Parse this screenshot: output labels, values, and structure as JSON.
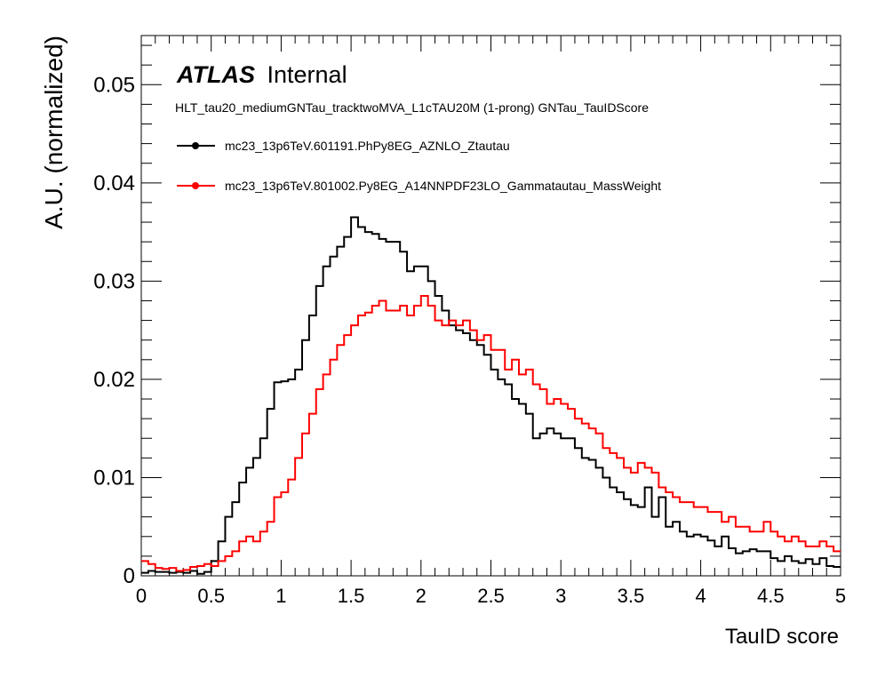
{
  "chart_data": {
    "type": "line",
    "style": "step-histogram",
    "ylabel": "A.U. (normalized)",
    "xlabel": "TauID score",
    "xlim": [
      0,
      5
    ],
    "ylim": [
      0,
      0.055
    ],
    "bin_width": 0.05,
    "x_ticks": [
      "0",
      "0.5",
      "1",
      "1.5",
      "2",
      "2.5",
      "3",
      "3.5",
      "4",
      "4.5",
      "5"
    ],
    "y_ticks": [
      "0",
      "0.01",
      "0.02",
      "0.03",
      "0.04",
      "0.05"
    ],
    "x_tick_values": [
      0,
      0.5,
      1,
      1.5,
      2,
      2.5,
      3,
      3.5,
      4,
      4.5,
      5
    ],
    "y_tick_values": [
      0,
      0.01,
      0.02,
      0.03,
      0.04,
      0.05
    ],
    "grid": false,
    "legend_position": "top-left",
    "atlas_label": "ATLAS",
    "atlas_status": "Internal",
    "subtitle": "HLT_tau20_mediumGNTau_tracktwoMVA_L1cTAU20M (1-prong) GNTau_TauIDScore",
    "series": [
      {
        "name": "mc23_13p6TeV.601191.PhPy8EG_AZNLO_Ztautau",
        "color": "#000000",
        "values": [
          0.0003,
          0.0005,
          0.0004,
          0.0004,
          0.0003,
          0.0004,
          0.0003,
          0.0005,
          0.0002,
          0.0004,
          0.0015,
          0.0035,
          0.006,
          0.0075,
          0.0095,
          0.011,
          0.012,
          0.014,
          0.017,
          0.0197,
          0.0198,
          0.02,
          0.021,
          0.024,
          0.0265,
          0.0295,
          0.0315,
          0.0325,
          0.0335,
          0.0345,
          0.0365,
          0.0355,
          0.035,
          0.0348,
          0.0343,
          0.034,
          0.034,
          0.033,
          0.031,
          0.0315,
          0.0315,
          0.03,
          0.0285,
          0.027,
          0.0255,
          0.025,
          0.0247,
          0.024,
          0.0235,
          0.0225,
          0.021,
          0.02,
          0.0195,
          0.018,
          0.0175,
          0.0165,
          0.014,
          0.0145,
          0.015,
          0.0145,
          0.014,
          0.014,
          0.013,
          0.012,
          0.0118,
          0.011,
          0.01,
          0.009,
          0.0085,
          0.0078,
          0.0072,
          0.007,
          0.009,
          0.006,
          0.008,
          0.005,
          0.0055,
          0.0045,
          0.004,
          0.0042,
          0.004,
          0.0036,
          0.003,
          0.004,
          0.0028,
          0.0023,
          0.0025,
          0.0027,
          0.0025,
          0.0025,
          0.0018,
          0.0015,
          0.002,
          0.0015,
          0.0013,
          0.0017,
          0.0012,
          0.0018,
          0.001,
          0.0009,
          0.0008,
          0.001,
          0.0008,
          0.0007,
          0.0006,
          0.0006,
          0.0006,
          0.0005,
          0.0005,
          0.0004,
          0.0005,
          0.0003,
          0.0003,
          0.0003,
          0.0005,
          0.0003,
          0.0003,
          0.0002,
          0.0002,
          0.0003,
          0.0002,
          0.0002,
          0.0002,
          0.0002,
          0.0002
        ]
      },
      {
        "name": "mc23_13p6TeV.801002.Py8EG_A14NNPDF23LO_Gammatautau_MassWeight",
        "color": "#ff0000",
        "values": [
          0.0015,
          0.0012,
          0.0008,
          0.0007,
          0.0008,
          0.0005,
          0.0006,
          0.0009,
          0.001,
          0.0012,
          0.001,
          0.0015,
          0.002,
          0.0025,
          0.0035,
          0.004,
          0.0035,
          0.0045,
          0.0055,
          0.008,
          0.0085,
          0.0098,
          0.012,
          0.0145,
          0.0165,
          0.019,
          0.0205,
          0.022,
          0.0235,
          0.0245,
          0.0255,
          0.0265,
          0.0268,
          0.0275,
          0.028,
          0.027,
          0.027,
          0.0275,
          0.0265,
          0.0275,
          0.0285,
          0.0275,
          0.026,
          0.0255,
          0.026,
          0.0255,
          0.026,
          0.025,
          0.024,
          0.0245,
          0.023,
          0.023,
          0.021,
          0.022,
          0.0205,
          0.021,
          0.0195,
          0.019,
          0.0175,
          0.018,
          0.0175,
          0.017,
          0.016,
          0.0155,
          0.015,
          0.0145,
          0.013,
          0.0125,
          0.012,
          0.011,
          0.0105,
          0.0115,
          0.011,
          0.0105,
          0.009,
          0.0085,
          0.008,
          0.0075,
          0.0075,
          0.007,
          0.007,
          0.0065,
          0.0065,
          0.0055,
          0.006,
          0.005,
          0.005,
          0.0045,
          0.0045,
          0.0055,
          0.0045,
          0.004,
          0.0035,
          0.004,
          0.0035,
          0.003,
          0.003,
          0.0035,
          0.003,
          0.0025,
          0.0025,
          0.0025,
          0.003,
          0.003,
          0.0028,
          0.003,
          0.0025,
          0.0022,
          0.002,
          0.002,
          0.0025,
          0.002,
          0.0018,
          0.0015,
          0.0018,
          0.0015,
          0.0012,
          0.0014,
          0.0013,
          0.001,
          0.0008,
          0.001,
          0.0012,
          0.0009,
          0.001,
          0.0008,
          0.0009,
          0.0006,
          0.0007,
          0.0006
        ]
      }
    ]
  }
}
